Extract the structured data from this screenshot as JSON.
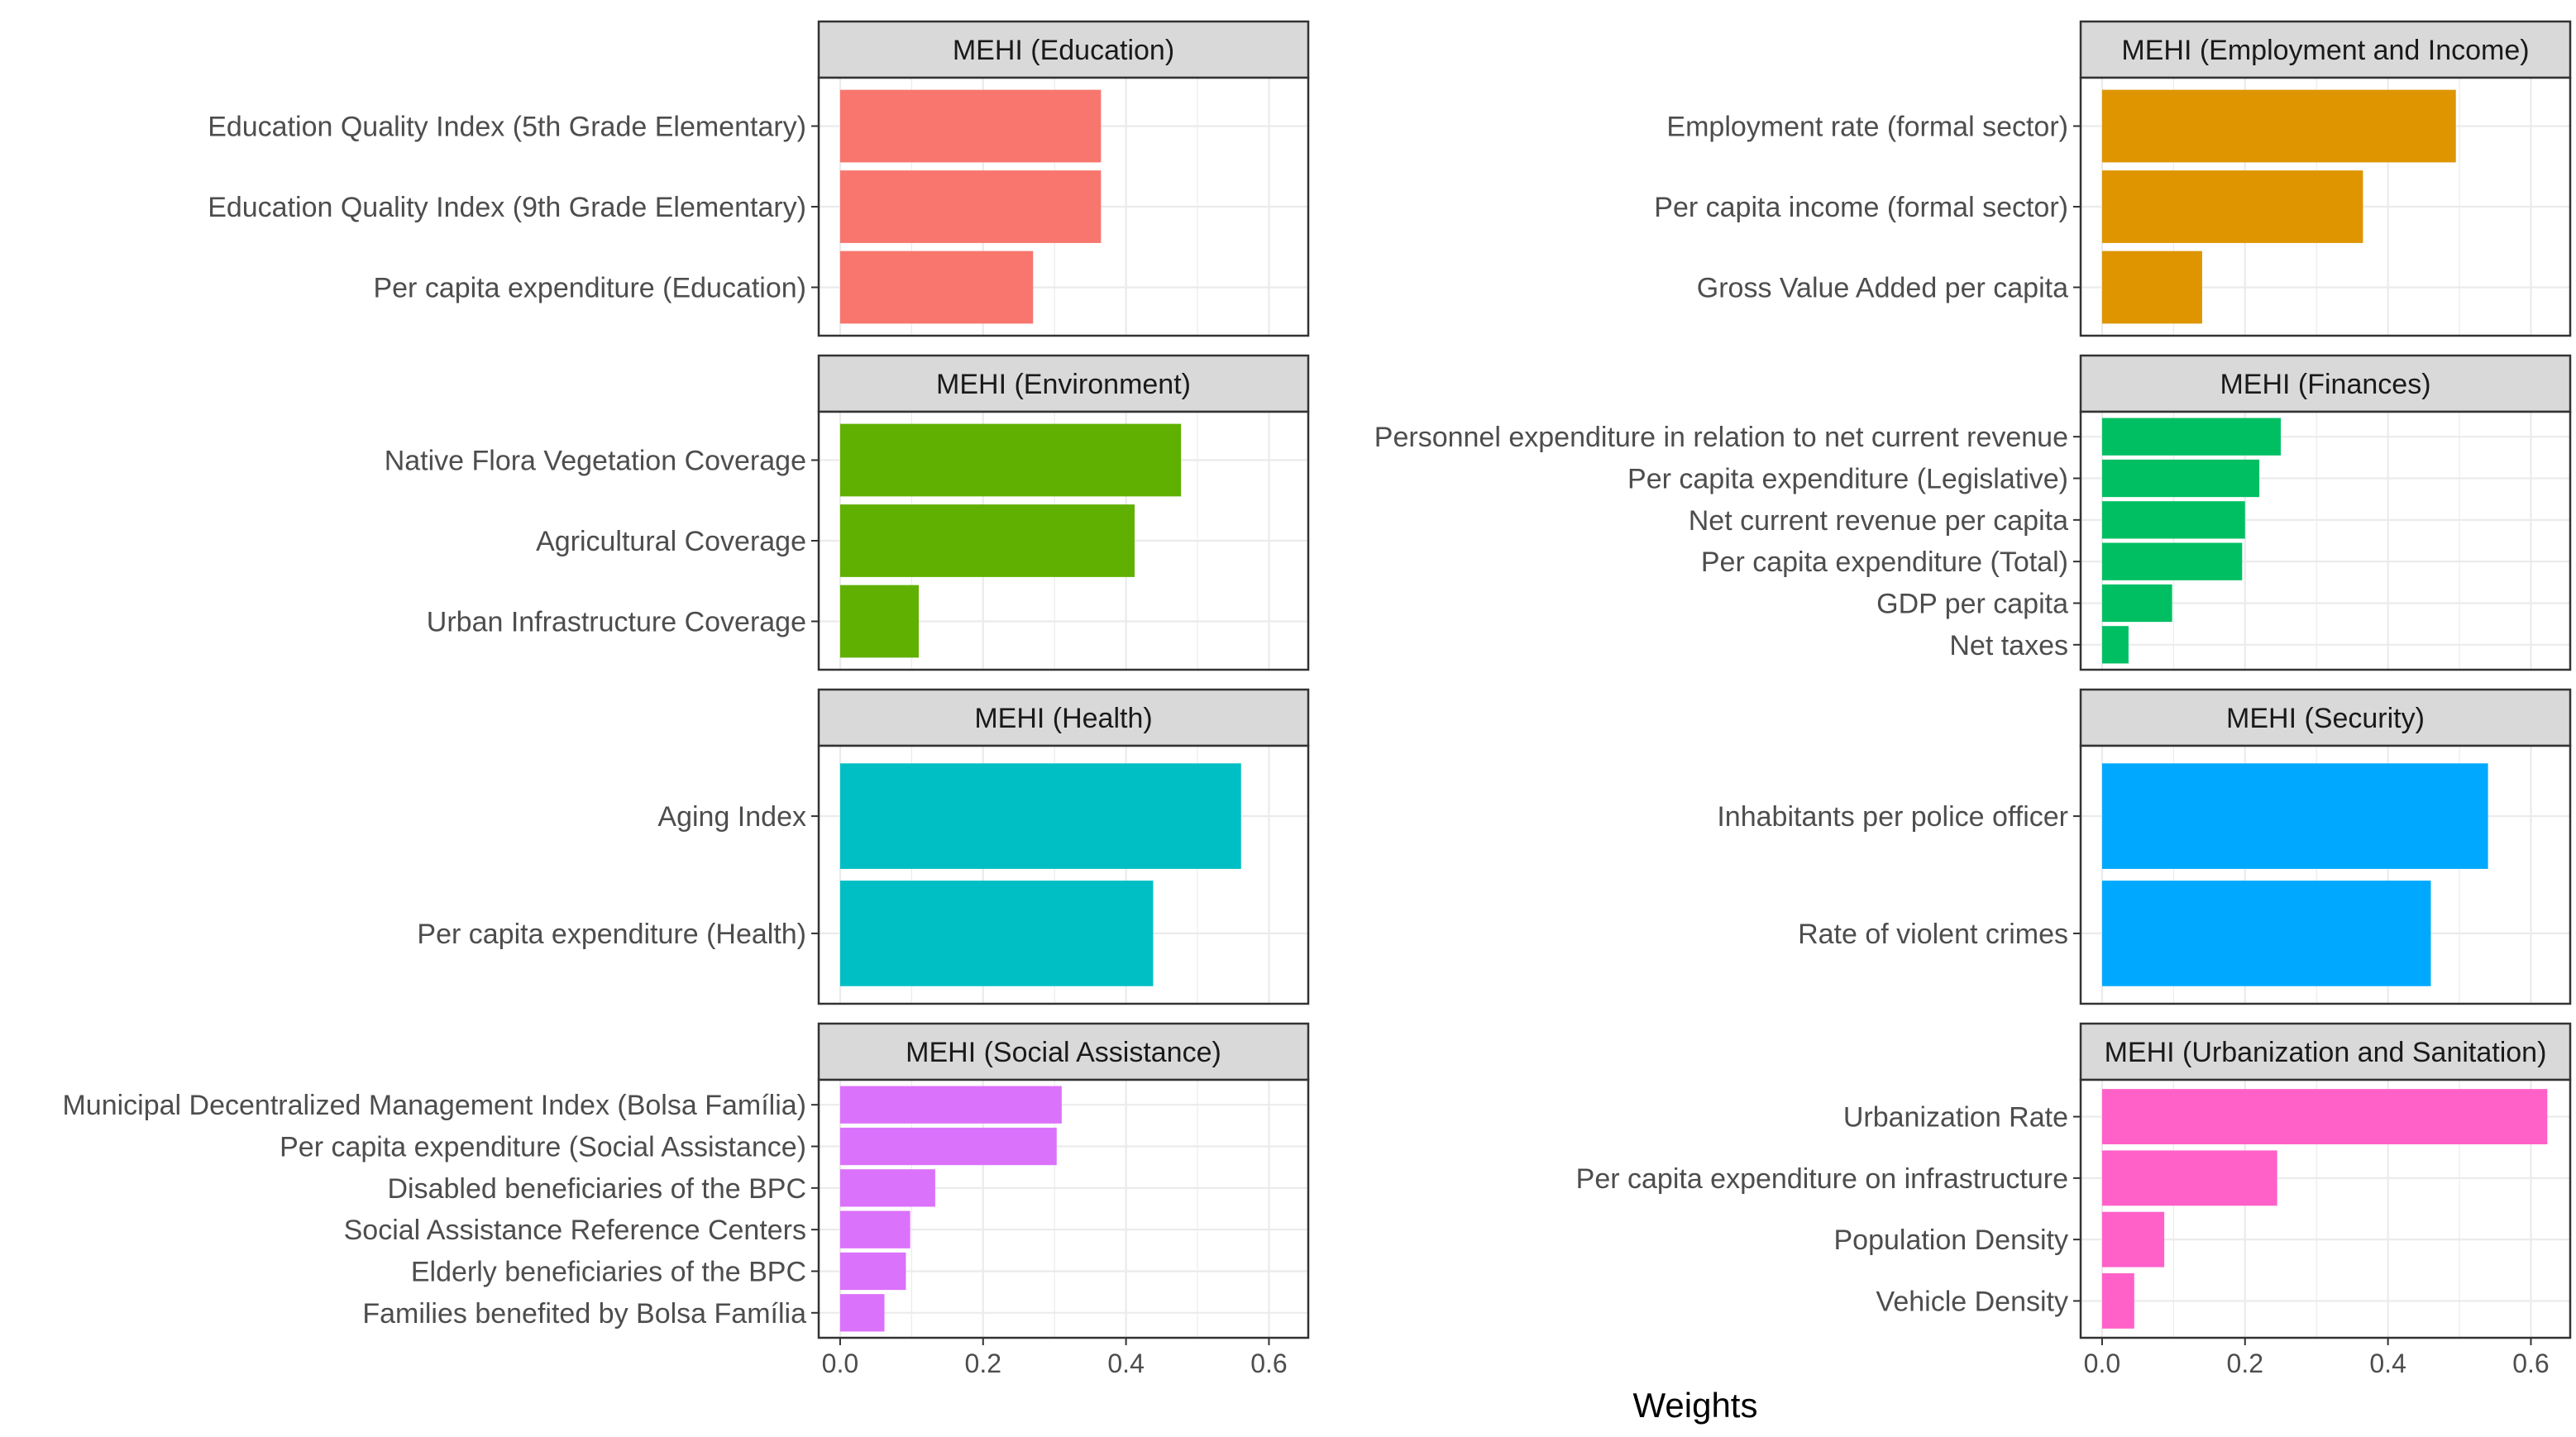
{
  "chart_data": {
    "type": "bar",
    "orientation": "horizontal",
    "x_axis_title": "Weights",
    "xlim": [
      -0.03,
      0.655
    ],
    "x_ticks": [
      "0.0",
      "0.2",
      "0.4",
      "0.6"
    ],
    "x_tick_values": [
      0,
      0.2,
      0.4,
      0.6
    ],
    "grid": true,
    "panels": [
      {
        "title": "MEHI (Education)",
        "color": "#F8766D",
        "categories": [
          "Education Quality Index (5th Grade Elementary)",
          "Education Quality Index (9th Grade Elementary)",
          "Per capita expenditure (Education)"
        ],
        "values": [
          0.365,
          0.365,
          0.27
        ]
      },
      {
        "title": "MEHI (Employment and Income)",
        "color": "#DE9500",
        "categories": [
          "Employment rate (formal sector)",
          "Per capita income (formal sector)",
          "Gross Value Added per capita"
        ],
        "values": [
          0.495,
          0.365,
          0.14
        ]
      },
      {
        "title": "MEHI (Environment)",
        "color": "#5FB000",
        "categories": [
          "Native Flora Vegetation Coverage",
          "Agricultural Coverage",
          "Urban Infrastructure Coverage"
        ],
        "values": [
          0.477,
          0.412,
          0.11
        ]
      },
      {
        "title": "MEHI (Finances)",
        "color": "#00BF63",
        "categories": [
          "Personnel expenditure in relation to net current revenue",
          "Per capita expenditure (Legislative)",
          "Net current revenue per capita",
          "Per capita expenditure (Total)",
          "GDP per capita",
          "Net taxes"
        ],
        "values": [
          0.25,
          0.22,
          0.2,
          0.196,
          0.098,
          0.037
        ]
      },
      {
        "title": "MEHI (Health)",
        "color": "#00BFC4",
        "categories": [
          "Aging Index",
          "Per capita expenditure (Health)"
        ],
        "values": [
          0.561,
          0.438
        ]
      },
      {
        "title": "MEHI (Security)",
        "color": "#00A9FF",
        "categories": [
          "Inhabitants per police officer",
          "Rate of violent crimes"
        ],
        "values": [
          0.54,
          0.46
        ]
      },
      {
        "title": "MEHI (Social Assistance)",
        "color": "#DB72FB",
        "categories": [
          "Municipal Decentralized Management Index (Bolsa Família)",
          "Per capita expenditure (Social Assistance)",
          "Disabled beneficiaries of the BPC",
          "Social Assistance Reference Centers",
          "Elderly beneficiaries of the BPC",
          "Families benefited by Bolsa Família"
        ],
        "values": [
          0.31,
          0.303,
          0.133,
          0.098,
          0.092,
          0.062
        ]
      },
      {
        "title": "MEHI (Urbanization and Sanitation)",
        "color": "#FF61C9",
        "categories": [
          "Urbanization Rate",
          "Per capita expenditure on infrastructure",
          "Population Density",
          "Vehicle Density"
        ],
        "values": [
          0.623,
          0.245,
          0.087,
          0.045
        ]
      }
    ]
  }
}
